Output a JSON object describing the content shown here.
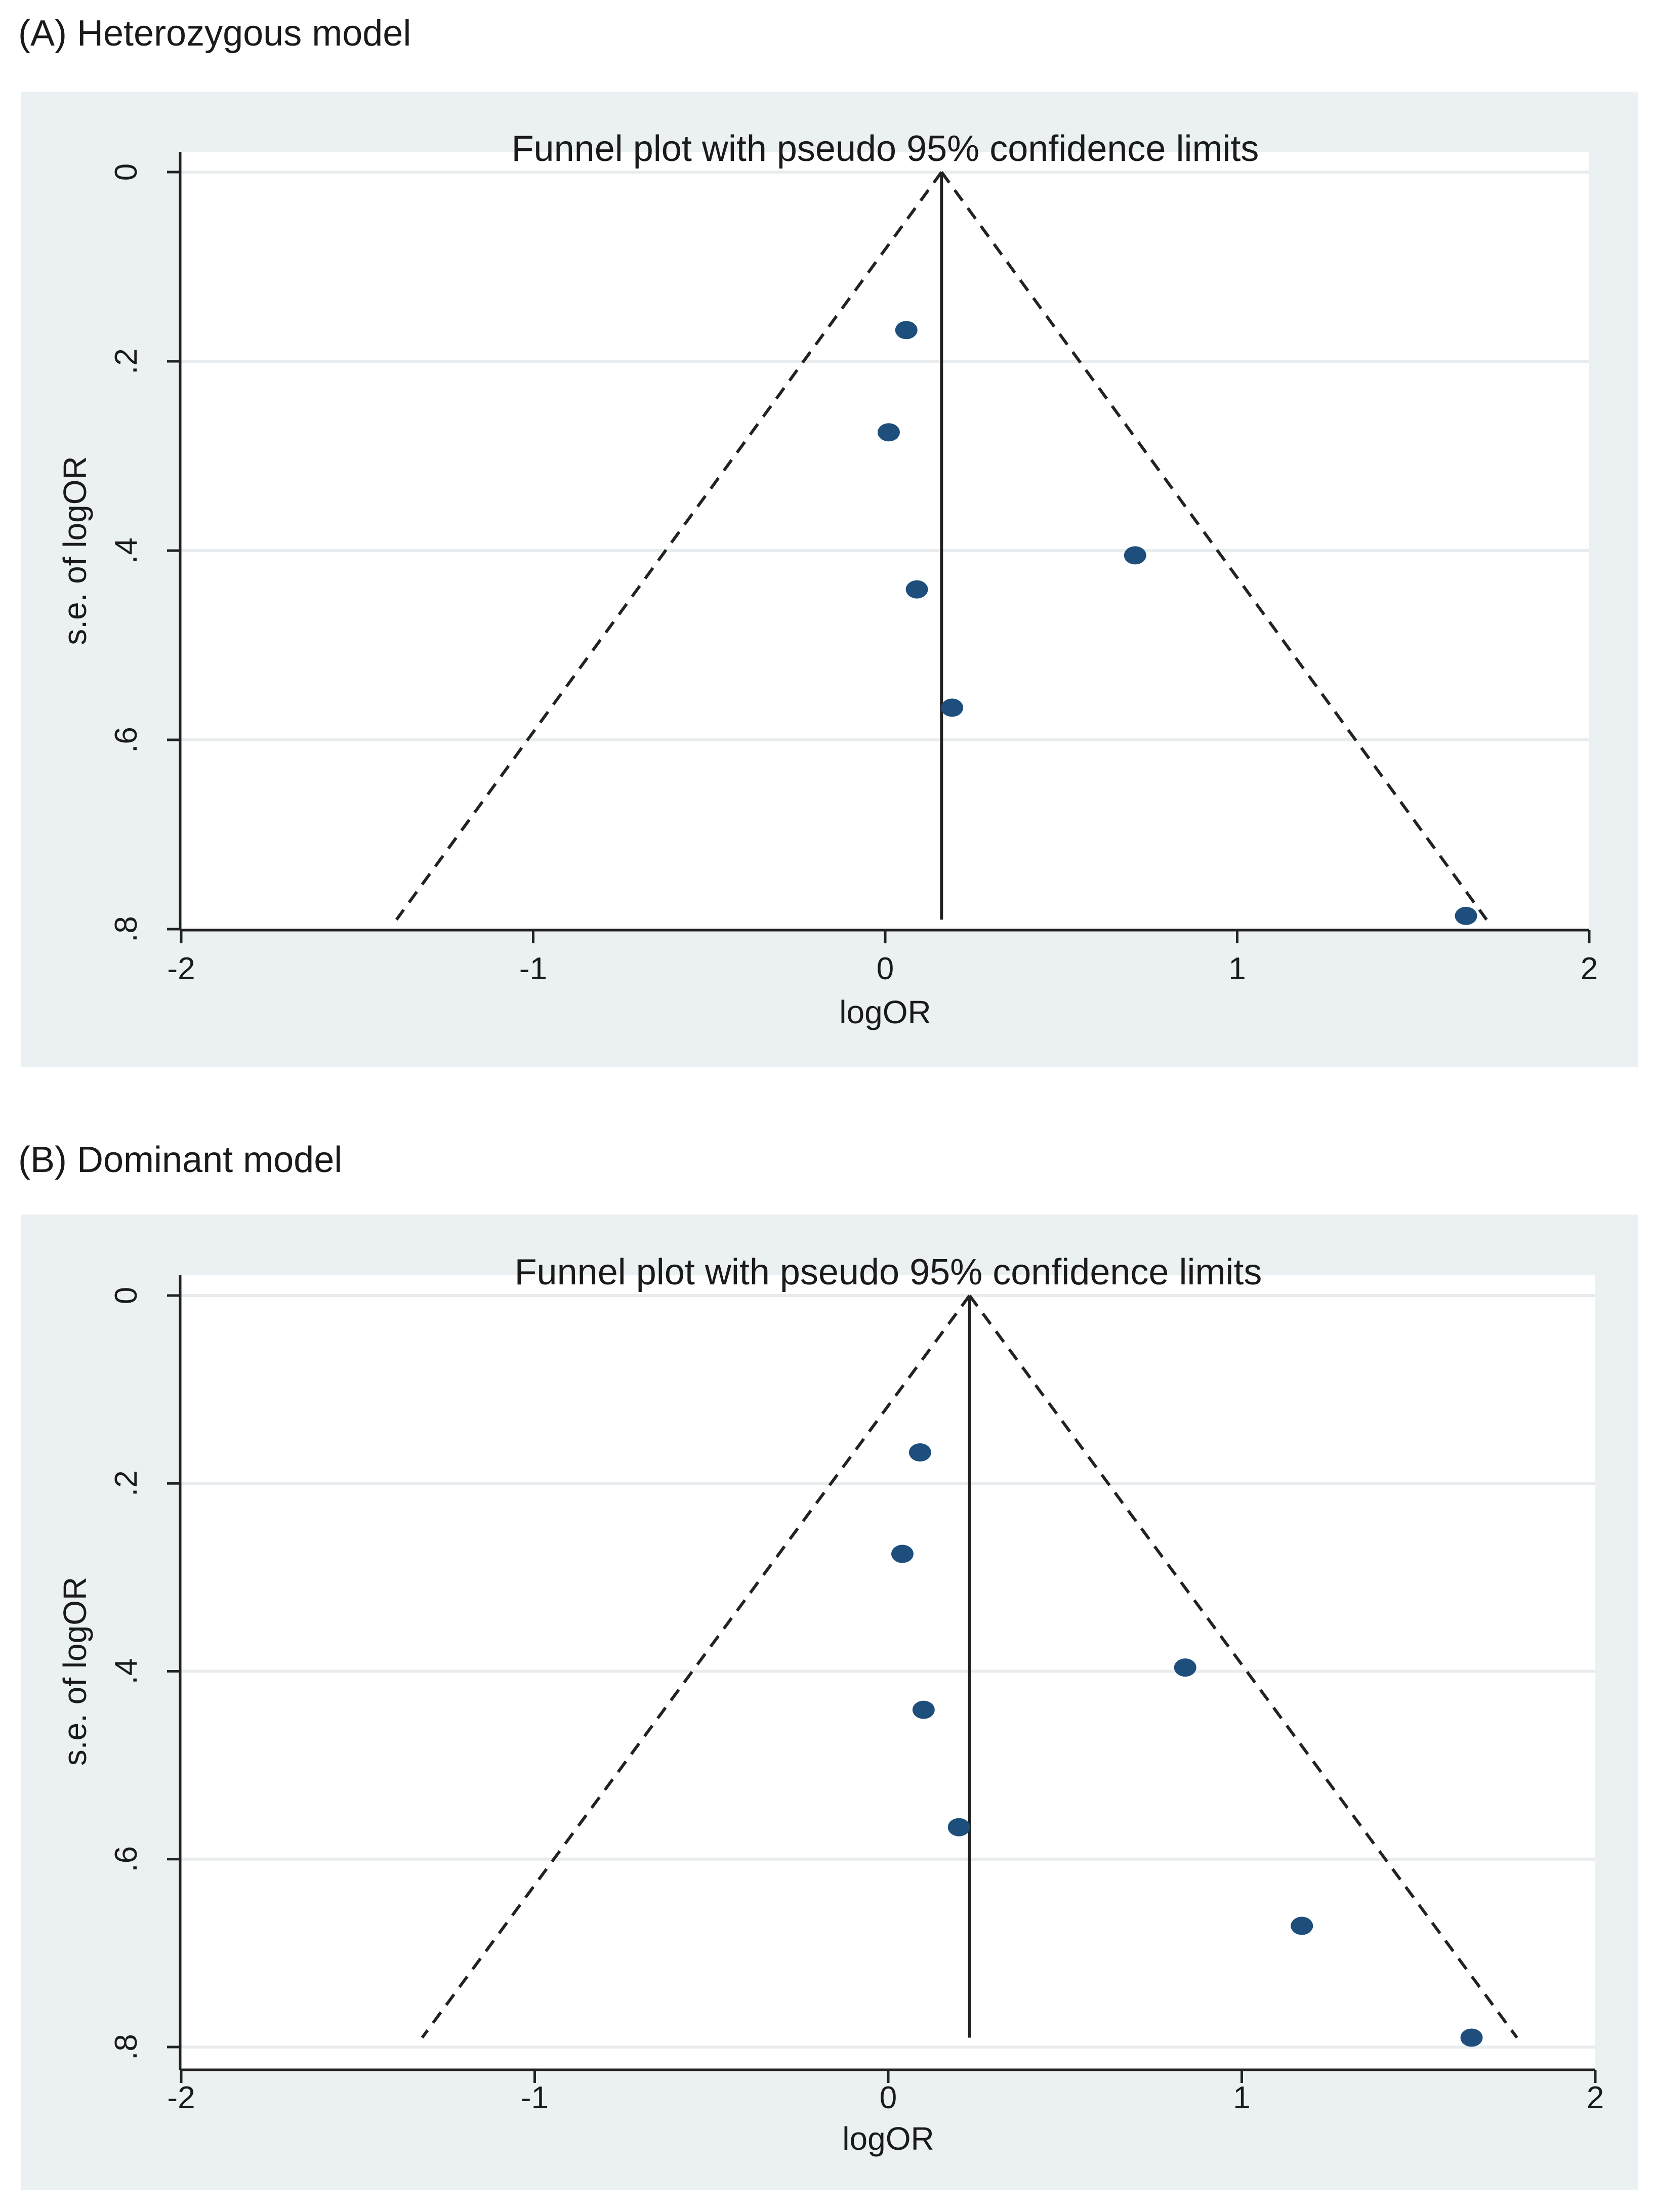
{
  "chart_data": [
    {
      "panel_label": "(A) Heterozygous model",
      "type": "scatter",
      "title": "Funnel plot with pseudo 95% confidence limits",
      "xlabel": "logOR",
      "ylabel": "s.e. of logOR",
      "xlim": [
        -2,
        2
      ],
      "xticks": [
        "-2",
        "-1",
        "0",
        "1",
        "2"
      ],
      "ylim": [
        0,
        0.8
      ],
      "y_reversed": true,
      "yticks": [
        "0",
        ".2",
        ".4",
        ".6",
        ".8"
      ],
      "grid": true,
      "pooled_logOR": 0.16,
      "funnel_max_se": 0.79,
      "points": [
        {
          "x": 0.06,
          "y": 0.167
        },
        {
          "x": 0.01,
          "y": 0.275
        },
        {
          "x": 0.71,
          "y": 0.405
        },
        {
          "x": 0.09,
          "y": 0.441
        },
        {
          "x": 0.19,
          "y": 0.566
        },
        {
          "x": 1.65,
          "y": 0.786
        }
      ],
      "colors": {
        "point": "#1d4e7c",
        "line": "#222222",
        "grid": "#e8ecee",
        "plot_bg": "#ffffff"
      }
    },
    {
      "panel_label": "(B) Dominant model",
      "type": "scatter",
      "title": "Funnel plot with pseudo 95% confidence limits",
      "xlabel": "logOR",
      "ylabel": "s.e. of logOR",
      "xlim": [
        -2,
        2
      ],
      "xticks": [
        "-2",
        "-1",
        "0",
        "1",
        "2"
      ],
      "ylim": [
        0,
        0.8
      ],
      "y_reversed": true,
      "yticks": [
        "0",
        ".2",
        ".4",
        ".6",
        ".8"
      ],
      "grid": true,
      "pooled_logOR": 0.23,
      "funnel_max_se": 0.79,
      "points": [
        {
          "x": 0.09,
          "y": 0.167
        },
        {
          "x": 0.04,
          "y": 0.275
        },
        {
          "x": 0.84,
          "y": 0.396
        },
        {
          "x": 0.1,
          "y": 0.441
        },
        {
          "x": 0.2,
          "y": 0.566
        },
        {
          "x": 1.17,
          "y": 0.671
        },
        {
          "x": 1.65,
          "y": 0.79
        }
      ],
      "colors": {
        "point": "#1d4e7c",
        "line": "#222222",
        "grid": "#e8ecee",
        "plot_bg": "#ffffff"
      }
    }
  ]
}
